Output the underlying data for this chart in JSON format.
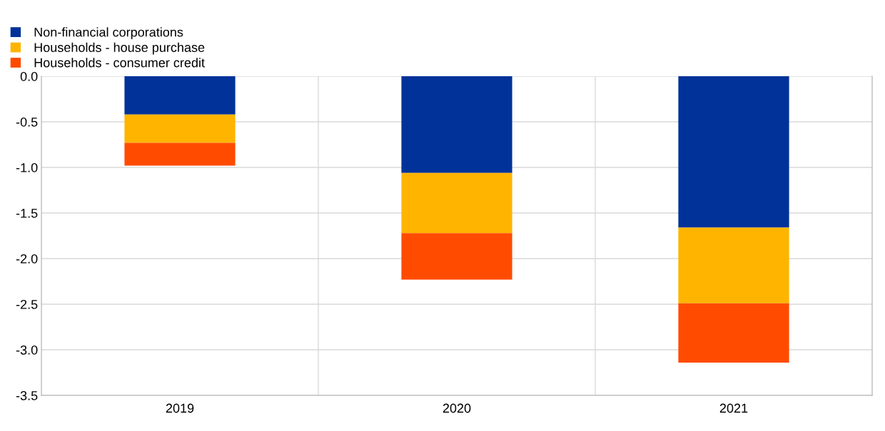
{
  "chart_data": {
    "type": "bar",
    "stacked": true,
    "categories": [
      "2019",
      "2020",
      "2021"
    ],
    "series": [
      {
        "name": "Non-financial corporations",
        "color": "#003299",
        "values": [
          -0.42,
          -1.06,
          -1.66
        ]
      },
      {
        "name": "Households - house purchase",
        "color": "#ffb400",
        "values": [
          -0.31,
          -0.66,
          -0.83
        ]
      },
      {
        "name": "Households - consumer credit",
        "color": "#ff4b00",
        "values": [
          -0.25,
          -0.51,
          -0.65
        ]
      }
    ],
    "ylim": [
      -3.5,
      0.0
    ],
    "yticks": [
      {
        "value": -3.5,
        "label": "-3.5"
      },
      {
        "value": -3.0,
        "label": "-3.0"
      },
      {
        "value": -2.5,
        "label": "-2.5"
      },
      {
        "value": -2.0,
        "label": "-2.0"
      },
      {
        "value": -1.5,
        "label": "-1.5"
      },
      {
        "value": -1.0,
        "label": "-1.0"
      },
      {
        "value": -0.5,
        "label": "-0.5"
      },
      {
        "value": 0.0,
        "label": "0.0"
      }
    ],
    "grid": true,
    "legend": "top left"
  }
}
